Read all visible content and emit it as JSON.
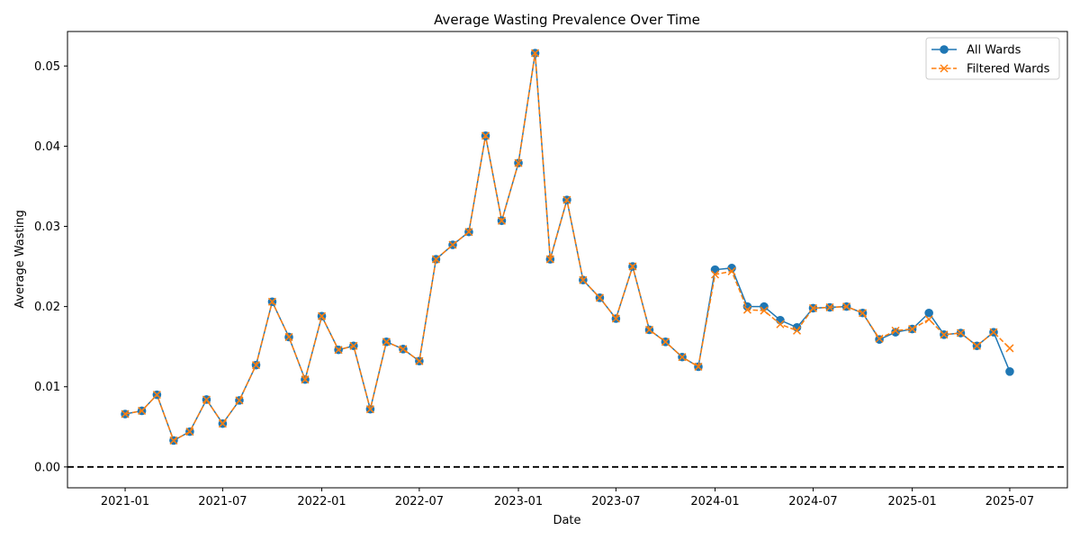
{
  "chart_data": {
    "type": "line",
    "title": "Average Wasting Prevalence Over Time",
    "xlabel": "Date",
    "ylabel": "Average Wasting",
    "xlim": [
      "2020-09-16",
      "2025-10-16"
    ],
    "ylim": [
      -0.0026,
      0.0543
    ],
    "x_ticks": [
      {
        "date": "2021-01-01",
        "label": "2021-01"
      },
      {
        "date": "2021-07-01",
        "label": "2021-07"
      },
      {
        "date": "2022-01-01",
        "label": "2022-01"
      },
      {
        "date": "2022-07-01",
        "label": "2022-07"
      },
      {
        "date": "2023-01-01",
        "label": "2023-01"
      },
      {
        "date": "2023-07-01",
        "label": "2023-07"
      },
      {
        "date": "2024-01-01",
        "label": "2024-01"
      },
      {
        "date": "2024-07-01",
        "label": "2024-07"
      },
      {
        "date": "2025-01-01",
        "label": "2025-01"
      },
      {
        "date": "2025-07-01",
        "label": "2025-07"
      }
    ],
    "y_ticks": [
      {
        "value": 0.0,
        "label": "0.00"
      },
      {
        "value": 0.01,
        "label": "0.01"
      },
      {
        "value": 0.02,
        "label": "0.02"
      },
      {
        "value": 0.03,
        "label": "0.03"
      },
      {
        "value": 0.04,
        "label": "0.04"
      },
      {
        "value": 0.05,
        "label": "0.05"
      }
    ],
    "reference_line": {
      "y": 0.0,
      "style": "dashed",
      "color": "#000000"
    },
    "legend": {
      "placement": "top-right"
    },
    "grid": false,
    "x": [
      "2021-01-01",
      "2021-02-01",
      "2021-03-01",
      "2021-04-01",
      "2021-05-01",
      "2021-06-01",
      "2021-07-01",
      "2021-08-01",
      "2021-09-01",
      "2021-10-01",
      "2021-11-01",
      "2021-12-01",
      "2022-01-01",
      "2022-02-01",
      "2022-03-01",
      "2022-04-01",
      "2022-05-01",
      "2022-06-01",
      "2022-07-01",
      "2022-08-01",
      "2022-09-01",
      "2022-10-01",
      "2022-11-01",
      "2022-12-01",
      "2023-01-01",
      "2023-02-01",
      "2023-03-01",
      "2023-04-01",
      "2023-05-01",
      "2023-06-01",
      "2023-07-01",
      "2023-08-01",
      "2023-09-01",
      "2023-10-01",
      "2023-11-01",
      "2023-12-01",
      "2024-01-01",
      "2024-02-01",
      "2024-03-01",
      "2024-04-01",
      "2024-05-01",
      "2024-06-01",
      "2024-07-01",
      "2024-08-01",
      "2024-09-01",
      "2024-10-01",
      "2024-11-01",
      "2024-12-01",
      "2025-01-01",
      "2025-02-01",
      "2025-03-01",
      "2025-04-01",
      "2025-05-01",
      "2025-06-01",
      "2025-07-01"
    ],
    "series": [
      {
        "name": "All Wards",
        "color": "#1f77b4",
        "marker": "circle",
        "line": "solid",
        "values": [
          0.0066,
          0.007,
          0.009,
          0.0033,
          0.0044,
          0.0084,
          0.0054,
          0.0083,
          0.0127,
          0.0206,
          0.0162,
          0.0109,
          0.0188,
          0.0146,
          0.0151,
          0.0072,
          0.0156,
          0.0147,
          0.0132,
          0.0259,
          0.0277,
          0.0293,
          0.0413,
          0.0307,
          0.0379,
          0.0516,
          0.0259,
          0.0333,
          0.0233,
          0.0211,
          0.0185,
          0.025,
          0.0171,
          0.0156,
          0.0137,
          0.0125,
          0.0246,
          0.0248,
          0.02,
          0.02,
          0.0183,
          0.0174,
          0.0198,
          0.0199,
          0.02,
          0.0192,
          0.0159,
          0.0168,
          0.0172,
          0.0192,
          0.0165,
          0.0167,
          0.0151,
          0.0168,
          0.0119
        ]
      },
      {
        "name": "Filtered Wards",
        "color": "#ff7f0e",
        "marker": "x",
        "line": "dashed",
        "values": [
          0.0066,
          0.007,
          0.009,
          0.0033,
          0.0044,
          0.0084,
          0.0054,
          0.0083,
          0.0127,
          0.0206,
          0.0162,
          0.0109,
          0.0188,
          0.0146,
          0.0151,
          0.0072,
          0.0156,
          0.0147,
          0.0132,
          0.0259,
          0.0277,
          0.0293,
          0.0413,
          0.0307,
          0.0379,
          0.0516,
          0.0259,
          0.0333,
          0.0233,
          0.0211,
          0.0185,
          0.025,
          0.0171,
          0.0156,
          0.0137,
          0.0125,
          0.024,
          0.0244,
          0.0196,
          0.0195,
          0.0178,
          0.017,
          0.0198,
          0.0199,
          0.02,
          0.0192,
          0.016,
          0.017,
          0.0172,
          0.0184,
          0.0165,
          0.0167,
          0.0151,
          0.0168,
          0.0148
        ]
      }
    ]
  }
}
